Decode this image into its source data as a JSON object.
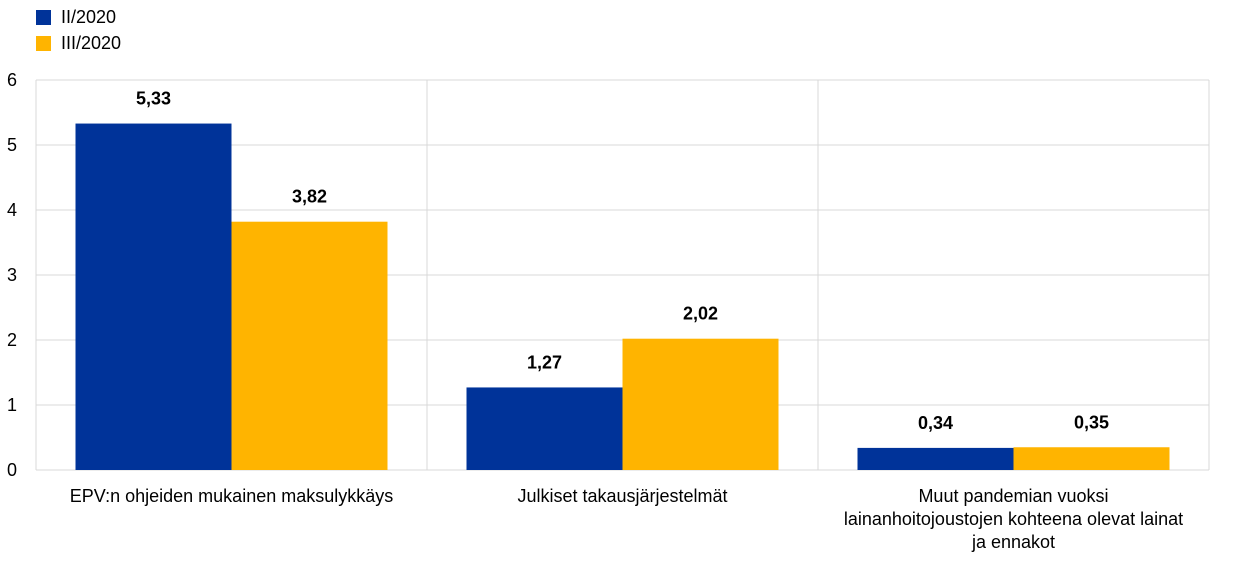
{
  "chart_data": {
    "type": "bar",
    "categories": [
      [
        "EPV:n ohjeiden mukainen maksulykkäys"
      ],
      [
        "Julkiset takausjärjestelmät"
      ],
      [
        "Muut pandemian vuoksi",
        "lainanhoitojoustojen kohteena olevat lainat",
        "ja ennakot"
      ]
    ],
    "series": [
      {
        "name": "II/2020",
        "color": "#003399",
        "values": [
          5.33,
          1.27,
          0.34
        ],
        "labels": [
          "5,33",
          "1,27",
          "0,34"
        ]
      },
      {
        "name": "III/2020",
        "color": "#FFB400",
        "values": [
          3.82,
          2.02,
          0.35
        ],
        "labels": [
          "3,82",
          "2,02",
          "0,35"
        ]
      }
    ],
    "yticks": [
      "0",
      "1",
      "2",
      "3",
      "4",
      "5",
      "6"
    ],
    "ylim": [
      0,
      6
    ],
    "grid": true,
    "legend_position": "top-left",
    "title": "",
    "xlabel": "",
    "ylabel": ""
  }
}
